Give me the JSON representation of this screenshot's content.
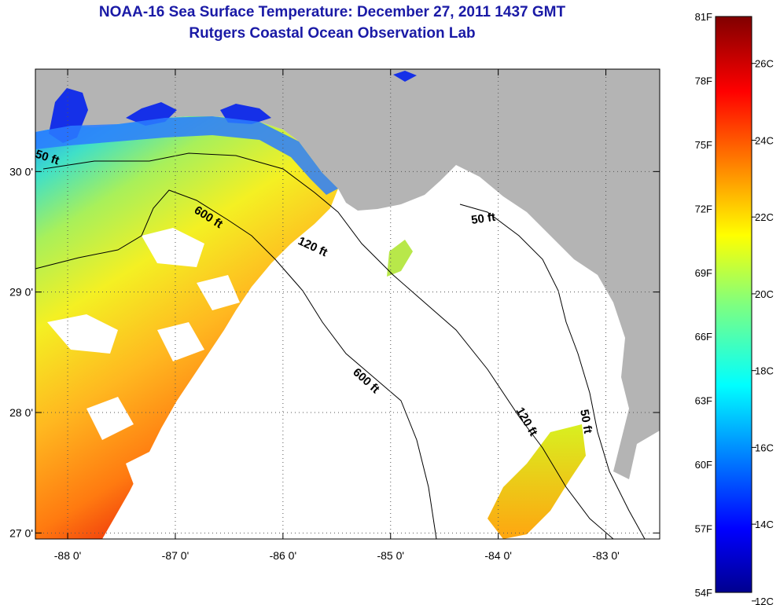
{
  "header": {
    "title": "NOAA-16 Sea Surface Temperature:  December 27, 2011 1437 GMT",
    "subtitle": "Rutgers Coastal Ocean Observation Lab"
  },
  "map": {
    "lon_range": [
      -88.3,
      -82.5
    ],
    "lat_range": [
      26.95,
      30.85
    ],
    "lon_ticks": [
      {
        "value": -88,
        "label": "-88 0'"
      },
      {
        "value": -87,
        "label": "-87 0'"
      },
      {
        "value": -86,
        "label": "-86 0'"
      },
      {
        "value": -85,
        "label": "-85 0'"
      },
      {
        "value": -84,
        "label": "-84 0'"
      },
      {
        "value": -83,
        "label": "-83 0'"
      }
    ],
    "lat_ticks": [
      {
        "value": 30,
        "label": "30 0'"
      },
      {
        "value": 29,
        "label": "29 0'"
      },
      {
        "value": 28,
        "label": "28 0'"
      },
      {
        "value": 27,
        "label": "27 0'"
      }
    ],
    "contour_labels": [
      "50 ft",
      "600 ft",
      "120 ft",
      "50 ft",
      "600 ft",
      "120 ft",
      "50 ft"
    ],
    "colors": {
      "land": "#b4b4b4",
      "no_data": "#ffffff",
      "grid": "#555555",
      "title": "#1a1aa6"
    }
  },
  "colorbar": {
    "fahrenheit": [
      "81F",
      "78F",
      "75F",
      "72F",
      "69F",
      "66F",
      "63F",
      "60F",
      "57F",
      "54F"
    ],
    "celsius": [
      "26C",
      "24C",
      "22C",
      "20C",
      "18C",
      "16C",
      "14C",
      "12C"
    ],
    "range_f": [
      54,
      81
    ],
    "colormap": "jet"
  }
}
